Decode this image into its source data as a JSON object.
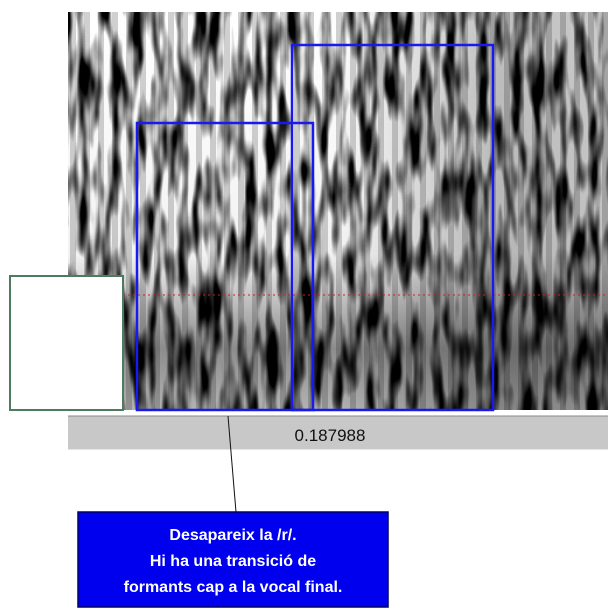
{
  "time_bar": {
    "label": "0.187988"
  },
  "callout": {
    "lines": [
      "Desapareix la /r/.",
      "Hi ha una transició de",
      "formants cap a la vocal final."
    ]
  }
}
